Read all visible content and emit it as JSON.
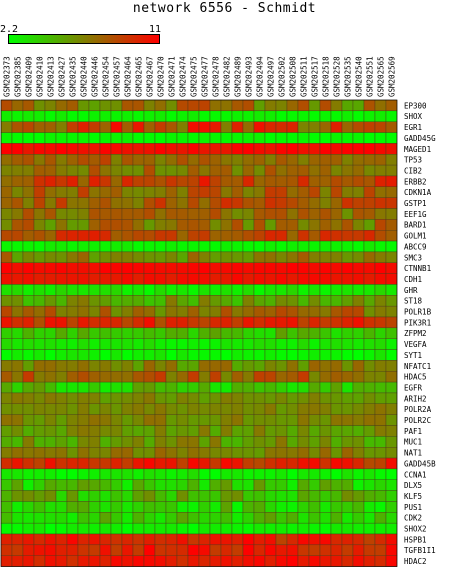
{
  "chart_data": {
    "type": "heatmap",
    "title": "network 6556 - Schmidt",
    "color_scale": {
      "min": 2.2,
      "max": 11,
      "low_color": "#00ff00",
      "mid_color": "#808000",
      "high_color": "#ff0000"
    },
    "columns": [
      "GSM202373",
      "GSM202385",
      "GSM202409",
      "GSM202410",
      "GSM202413",
      "GSM202427",
      "GSM202435",
      "GSM202440",
      "GSM202446",
      "GSM202454",
      "GSM202457",
      "GSM202464",
      "GSM202465",
      "GSM202467",
      "GSM202470",
      "GSM202471",
      "GSM202474",
      "GSM202475",
      "GSM202477",
      "GSM202478",
      "GSM202482",
      "GSM202489",
      "GSM202493",
      "GSM202494",
      "GSM202497",
      "GSM202502",
      "GSM202508",
      "GSM202511",
      "GSM202517",
      "GSM202518",
      "GSM202528",
      "GSM202535",
      "GSM202540",
      "GSM202551",
      "GSM202565",
      "GSM202569"
    ],
    "rows": [
      "EP300",
      "SHOX",
      "EGR1",
      "GADD45G",
      "MAGED1",
      "TP53",
      "CIB2",
      "ERBB2",
      "CDKN1A",
      "GSTP1",
      "EEF1G",
      "BARD1",
      "GOLM1",
      "ABCC9",
      "SMC3",
      "CTNNB1",
      "CDH1",
      "GHR",
      "ST18",
      "POLR1B",
      "PIK3R1",
      "ZFPM2",
      "VEGFA",
      "SYT1",
      "NFATC1",
      "HDAC5",
      "EGFR",
      "ARIH2",
      "POLR2A",
      "POLR2C",
      "PAF1",
      "MUC1",
      "NAT1",
      "GADD45B",
      "CCNA1",
      "DLX5",
      "KLF5",
      "PUS1",
      "CDK2",
      "SHOX2",
      "HSPB1",
      "TGFB1I1",
      "HDAC2"
    ],
    "row_levels": [
      7.0,
      2.6,
      8.6,
      2.4,
      10.6,
      7.6,
      7.0,
      8.8,
      7.6,
      8.0,
      7.2,
      7.0,
      8.8,
      2.6,
      6.6,
      10.8,
      10.4,
      3.0,
      5.6,
      7.2,
      9.4,
      4.4,
      3.0,
      2.6,
      6.4,
      7.6,
      4.4,
      6.2,
      6.4,
      6.4,
      6.0,
      5.8,
      6.6,
      9.6,
      2.8,
      4.2,
      4.6,
      4.0,
      4.2,
      2.6,
      9.8,
      10.0,
      10.2
    ],
    "row_spread": [
      1.8,
      0.3,
      2.2,
      0.3,
      0.5,
      1.2,
      1.4,
      1.6,
      1.4,
      1.5,
      1.3,
      1.6,
      1.4,
      0.3,
      1.4,
      0.3,
      0.4,
      0.6,
      1.4,
      1.4,
      1.2,
      1.2,
      0.5,
      0.5,
      1.3,
      1.4,
      1.6,
      0.8,
      0.7,
      0.8,
      1.0,
      1.2,
      1.0,
      1.2,
      0.6,
      1.6,
      1.6,
      1.6,
      1.4,
      0.4,
      1.2,
      1.2,
      0.9
    ]
  }
}
